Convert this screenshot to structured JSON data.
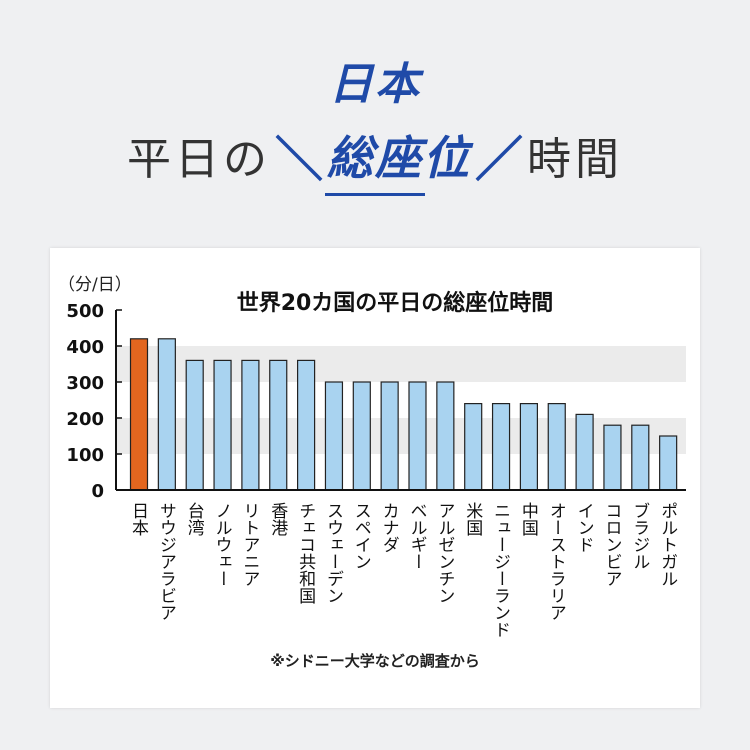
{
  "header": {
    "country": "日本",
    "title_pre": "平日の",
    "title_key": "総座位",
    "title_post": "時間",
    "accent_color": "#1f4aa8"
  },
  "chart_data": {
    "type": "bar",
    "title": "世界20カ国の平日の総座位時間",
    "ylabel": "（分/日）",
    "ylim": [
      0,
      500
    ],
    "yticks": [
      0,
      100,
      200,
      300,
      400,
      500
    ],
    "categories": [
      "日本",
      "サウジアラビア",
      "台湾",
      "ノルウェー",
      "リトアニア",
      "香港",
      "チェコ共和国",
      "スウェーデン",
      "スペイン",
      "カナダ",
      "ベルギー",
      "アルゼンチン",
      "米国",
      "ニュージーランド",
      "中国",
      "オーストラリア",
      "インド",
      "コロンビア",
      "ブラジル",
      "ポルトガル"
    ],
    "values": [
      420,
      420,
      360,
      360,
      360,
      360,
      360,
      300,
      300,
      300,
      300,
      300,
      240,
      240,
      240,
      240,
      210,
      180,
      180,
      150
    ],
    "highlight_index": 0,
    "highlight_color": "#e2661f",
    "bar_color": "#a9d3f0",
    "band_color": "#ebebeb",
    "source": "※シドニー大学などの調査から"
  }
}
